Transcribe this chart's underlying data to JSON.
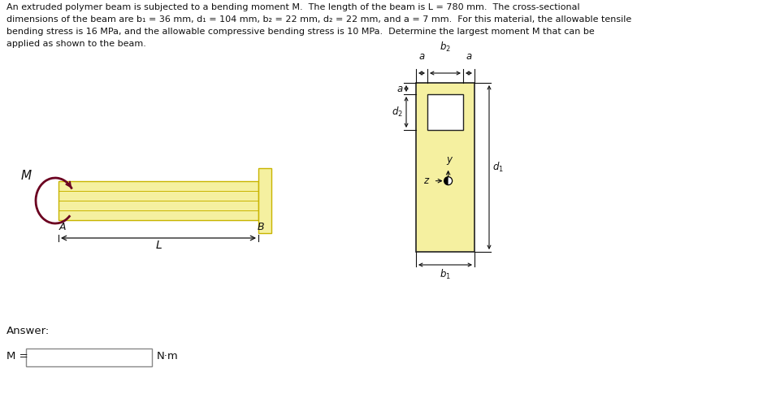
{
  "problem_text_line1": "An extruded polymer beam is subjected to a bending moment M.  The length of the beam is L = 780 mm.  The cross-sectional",
  "problem_text_line2": "dimensions of the beam are b₁ = 36 mm, d₁ = 104 mm, b₂ = 22 mm, d₂ = 22 mm, and a = 7 mm.  For this material, the allowable tensile",
  "problem_text_line3": "bending stress is 16 MPa, and the allowable compressive bending stress is 10 MPa.  Determine the largest moment M that can be",
  "problem_text_line4": "applied as shown to the beam.",
  "answer_label": "Answer:",
  "m_label": "M =",
  "nm_label": "N·m",
  "beam_color": "#f5f0a0",
  "beam_outline_color": "#c8b400",
  "cross_section_fill": "#f5f0a0",
  "cross_section_line": "#222222",
  "bg_color": "#ffffff",
  "text_color": "#111111",
  "dim_line_color": "#111111",
  "moment_color": "#6b0020"
}
